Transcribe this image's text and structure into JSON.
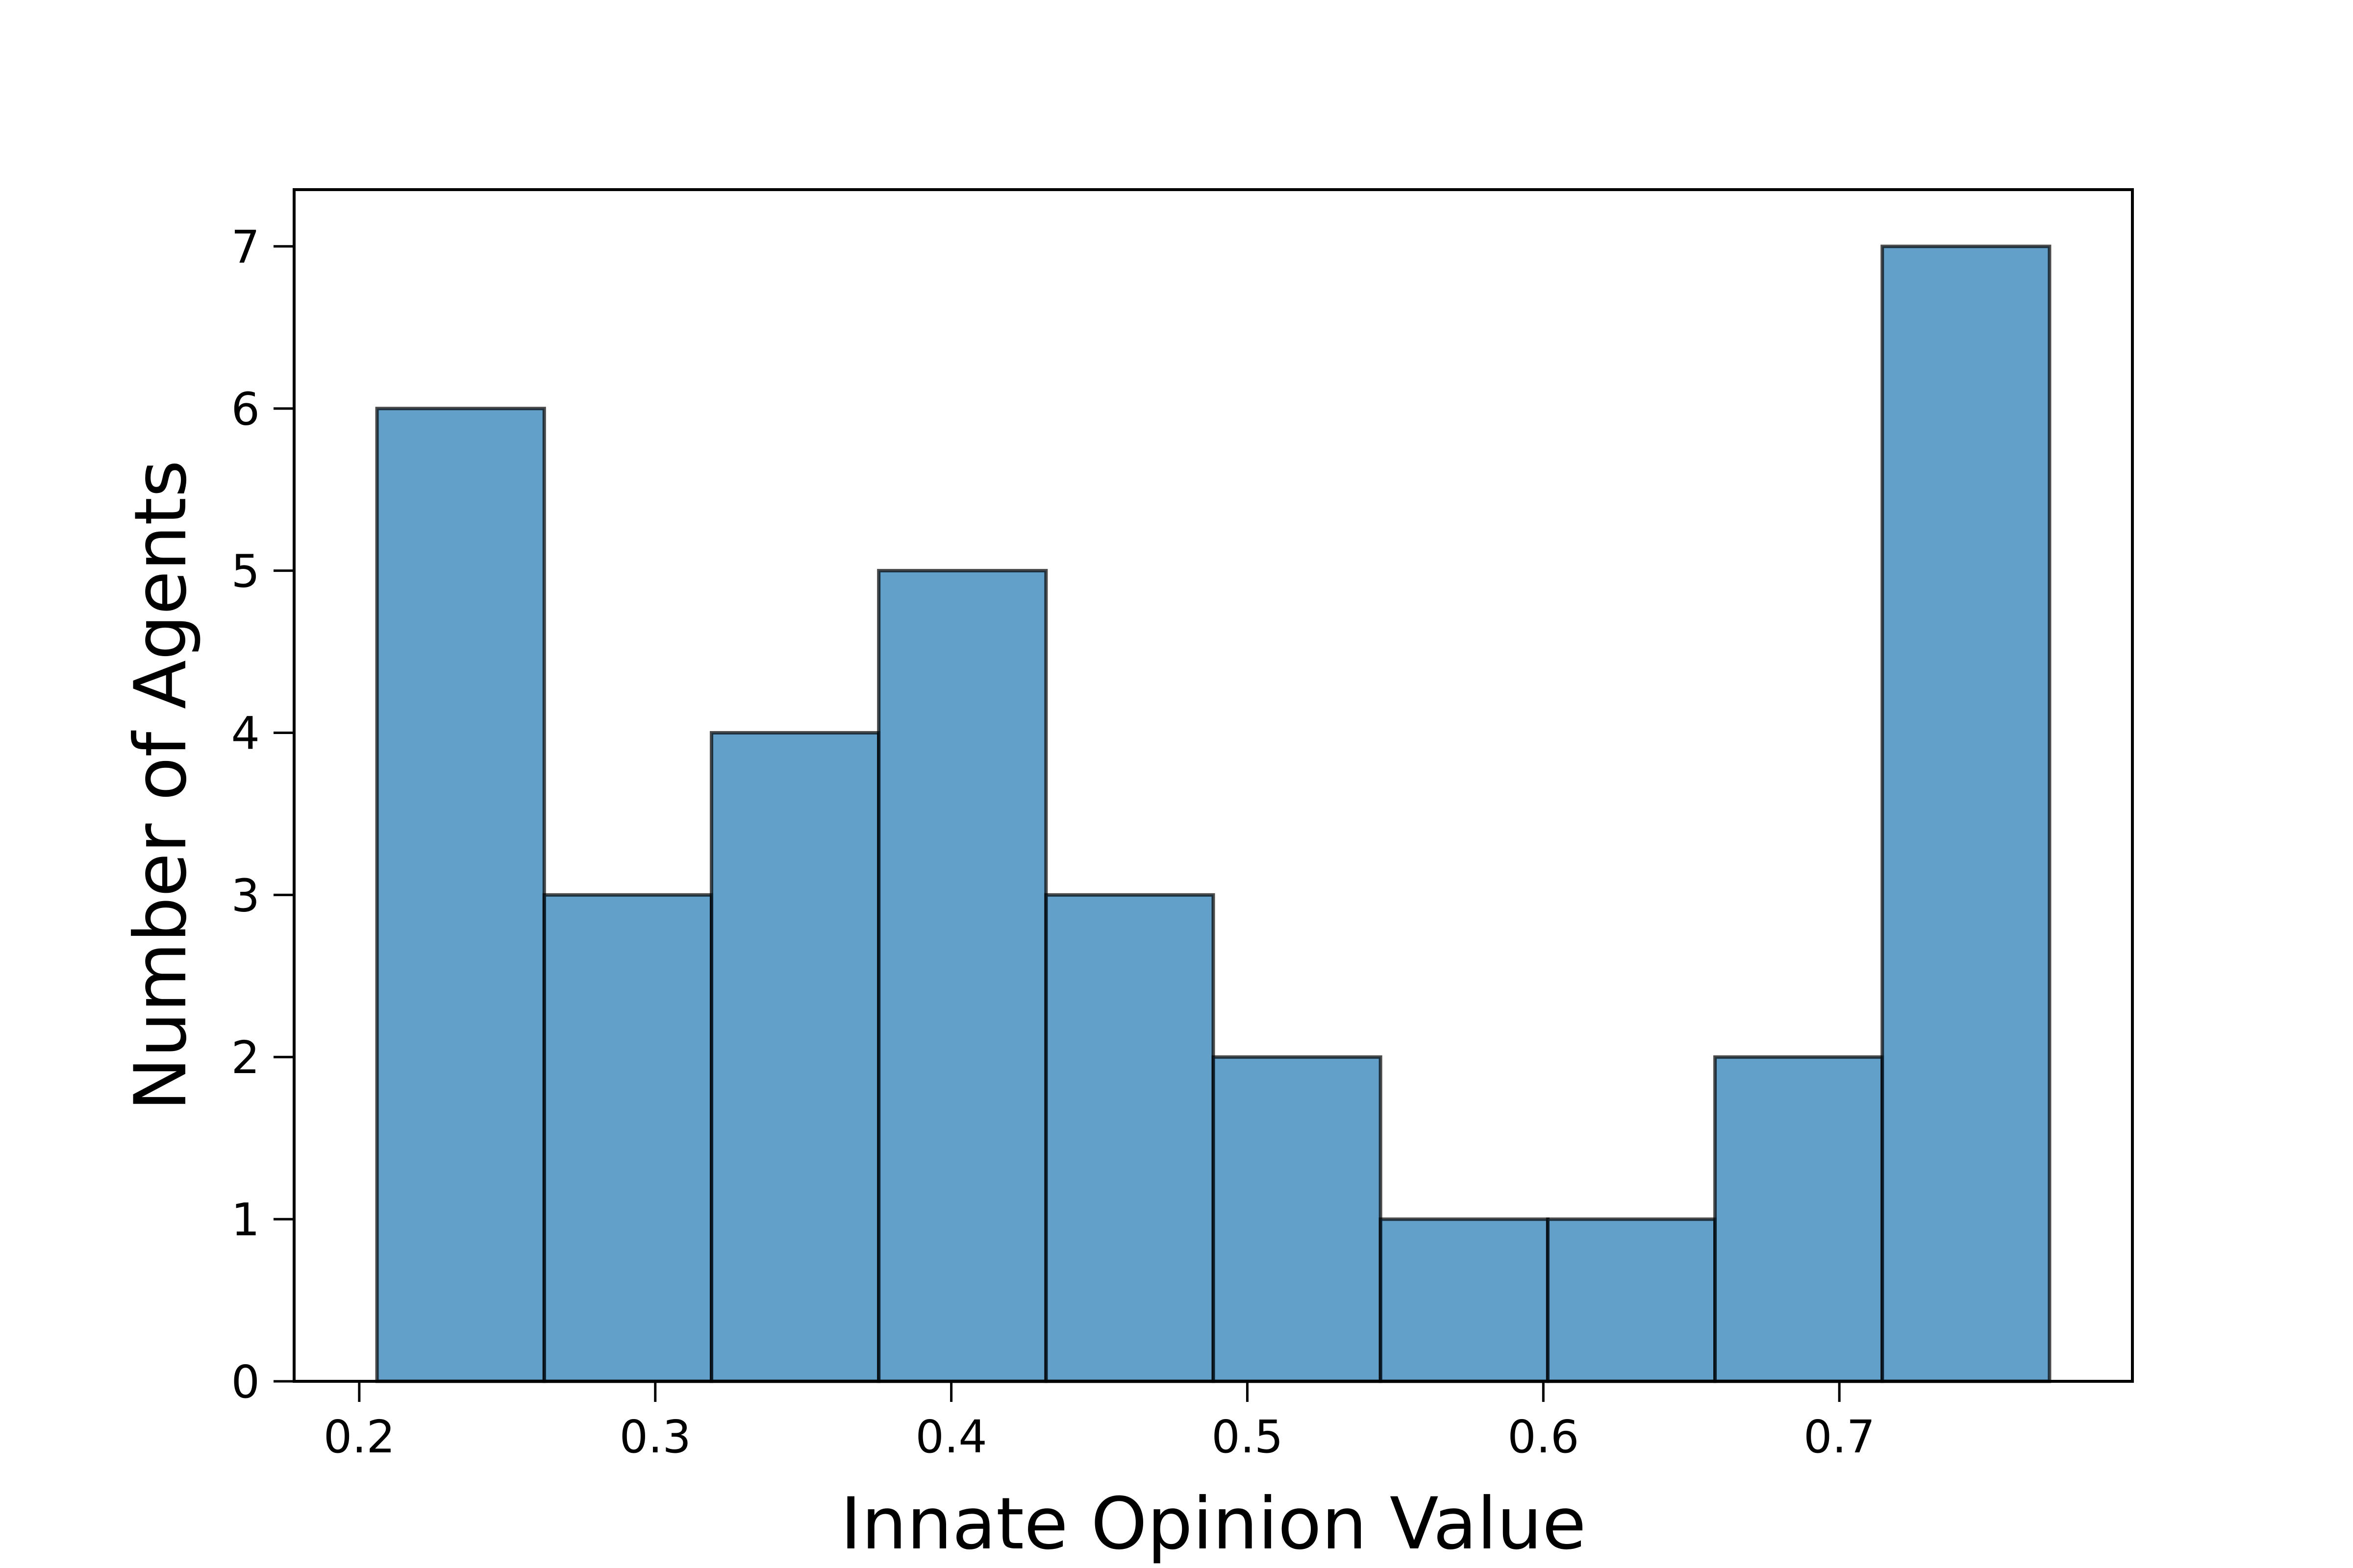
{
  "chart_data": {
    "type": "bar",
    "subtype": "histogram",
    "title": "",
    "xlabel": "Innate Opinion Value",
    "ylabel": "Number of Agents",
    "bin_edges": [
      0.206,
      0.2625,
      0.319,
      0.3755,
      0.432,
      0.4885,
      0.545,
      0.6015,
      0.658,
      0.7145,
      0.771
    ],
    "values": [
      6,
      3,
      4,
      5,
      3,
      2,
      1,
      1,
      2,
      7
    ],
    "xlim": [
      0.178,
      0.799
    ],
    "ylim": [
      0,
      7.35
    ],
    "x_ticks": [
      0.2,
      0.3,
      0.4,
      0.5,
      0.6,
      0.7
    ],
    "x_tick_labels": [
      "0.2",
      "0.3",
      "0.4",
      "0.5",
      "0.6",
      "0.7"
    ],
    "y_ticks": [
      0,
      1,
      2,
      3,
      4,
      5,
      6,
      7
    ],
    "y_tick_labels": [
      "0",
      "1",
      "2",
      "3",
      "4",
      "5",
      "6",
      "7"
    ],
    "grid": false,
    "legend": "none",
    "colors": {
      "bar_fill": "#1f77b4",
      "bar_fill_opacity": 0.7,
      "bar_edge": "#000000"
    }
  }
}
